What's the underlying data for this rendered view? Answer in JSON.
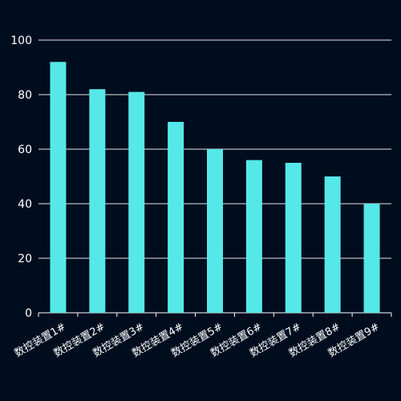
{
  "colors": {
    "background": "#000d1f",
    "bar": "#56e8e8",
    "grid": "#ffffff",
    "text": "#ffffff"
  },
  "chart_data": {
    "type": "bar",
    "title": "",
    "xlabel": "",
    "ylabel": "",
    "categories": [
      "数控装置1#",
      "数控装置2#",
      "数控装置3#",
      "数控装置4#",
      "数控装置5#",
      "数控装置6#",
      "数控装置7#",
      "数控装置8#",
      "数控装置9#"
    ],
    "values": [
      92,
      82,
      81,
      70,
      60,
      56,
      55,
      50,
      40
    ],
    "ylim": [
      0,
      100
    ],
    "yticks": [
      0,
      20,
      40,
      60,
      80,
      100
    ],
    "grid": true,
    "legend": "none"
  }
}
